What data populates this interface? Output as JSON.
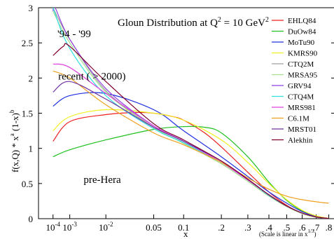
{
  "chart_data": {
    "type": "line",
    "title": {
      "main": "Gloun Distribution at Q",
      "sup": "2",
      "eq": " = 10 GeV",
      "sup2": "2"
    },
    "xlabel": "x",
    "x_note": {
      "main": "(Scale is linear in x",
      "sup": "1/3",
      "close": ")"
    },
    "ylabel": {
      "a": "f(x,Q)",
      "b": " * x",
      "b_sup": "a",
      "c": " (1-x)",
      "c_sup": "b"
    },
    "x_scale": "linear in x^(1/3)",
    "xlim": [
      0,
      0.85
    ],
    "ylim": [
      0,
      3
    ],
    "grid": false,
    "legend_position": "top-right",
    "x_ticks": [
      {
        "value": 0.0001,
        "base": "10",
        "exp": "-4"
      },
      {
        "value": 0.001,
        "base": "10",
        "exp": "-3"
      },
      {
        "value": 0.01,
        "base": "10",
        "exp": "-2"
      },
      {
        "value": 0.05,
        "text": "0.05"
      },
      {
        "value": 0.1,
        "text": "0.1"
      },
      {
        "value": 0.2,
        "text": ".2"
      },
      {
        "value": 0.3,
        "text": ".3"
      },
      {
        "value": 0.4,
        "text": ".4"
      },
      {
        "value": 0.5,
        "text": ".5"
      },
      {
        "value": 0.6,
        "text": ".6"
      },
      {
        "value": 0.7,
        "text": ".7"
      },
      {
        "value": 0.8,
        "text": ".8"
      }
    ],
    "y_ticks": [
      {
        "value": 0,
        "text": "0"
      },
      {
        "value": 0.5,
        "text": "0.5"
      },
      {
        "value": 1,
        "text": "1"
      },
      {
        "value": 1.5,
        "text": "1.5"
      },
      {
        "value": 2,
        "text": "2"
      },
      {
        "value": 2.5,
        "text": "2.5"
      },
      {
        "value": 3,
        "text": "3"
      }
    ],
    "annotations": [
      {
        "text": "'94 - '99",
        "x": 0.00022,
        "y": 2.63
      },
      {
        "text": "recent ( > 2000)",
        "x": 0.00025,
        "y": 2.03
      },
      {
        "text": "pre-Hera",
        "x": 0.003,
        "y": 0.56
      }
    ],
    "series": [
      {
        "name": "EHLQ84",
        "color": "#ee2020",
        "x": [
          0.0001,
          0.001,
          0.01,
          0.03,
          0.05,
          0.08,
          0.1,
          0.15,
          0.2,
          0.3,
          0.4,
          0.5,
          0.6,
          0.7,
          0.8
        ],
        "y": [
          1.1,
          1.38,
          1.48,
          1.51,
          1.5,
          1.45,
          1.4,
          1.22,
          1.02,
          0.66,
          0.38,
          0.19,
          0.08,
          0.03,
          0.005
        ]
      },
      {
        "name": "DuOw84",
        "color": "#20c020",
        "x": [
          0.0001,
          0.001,
          0.01,
          0.05,
          0.1,
          0.15,
          0.2,
          0.3,
          0.4,
          0.5,
          0.6,
          0.7,
          0.8
        ],
        "y": [
          0.88,
          0.98,
          1.12,
          1.27,
          1.31,
          1.3,
          1.22,
          0.88,
          0.52,
          0.26,
          0.11,
          0.03,
          0.005
        ]
      },
      {
        "name": "MoTu90",
        "color": "#2030e0",
        "x": [
          0.0001,
          0.001,
          0.01,
          0.05,
          0.1,
          0.2,
          0.3,
          0.4,
          0.5,
          0.6,
          0.7,
          0.8
        ],
        "y": [
          1.6,
          1.75,
          1.78,
          1.55,
          1.25,
          0.88,
          0.6,
          0.38,
          0.22,
          0.1,
          0.03,
          0.003
        ]
      },
      {
        "name": "KMRS90",
        "color": "#f0f020",
        "x": [
          0.0001,
          0.001,
          0.01,
          0.05,
          0.1,
          0.2,
          0.3,
          0.4,
          0.5,
          0.6,
          0.7,
          0.8
        ],
        "y": [
          1.25,
          1.45,
          1.55,
          1.5,
          1.4,
          1.12,
          0.8,
          0.5,
          0.27,
          0.12,
          0.04,
          0.005
        ]
      },
      {
        "name": "CTQ2M",
        "color": "#a0a0a0",
        "x": [
          0.0001,
          0.001,
          0.01,
          0.05,
          0.1,
          0.2,
          0.3,
          0.4,
          0.5,
          0.6,
          0.7,
          0.8
        ],
        "y": [
          3.0,
          2.55,
          1.82,
          1.3,
          1.08,
          0.8,
          0.55,
          0.33,
          0.18,
          0.08,
          0.025,
          0.003
        ]
      },
      {
        "name": "MRSA95",
        "color": "#a6e090",
        "x": [
          0.0001,
          0.001,
          0.01,
          0.05,
          0.1,
          0.2,
          0.3,
          0.4,
          0.5,
          0.6,
          0.7,
          0.8
        ],
        "y": [
          2.95,
          2.5,
          1.8,
          1.3,
          1.07,
          0.78,
          0.53,
          0.32,
          0.17,
          0.07,
          0.02,
          0.002
        ]
      },
      {
        "name": "GRV94",
        "color": "#9040e0",
        "x": [
          0.0001,
          0.00015,
          0.001,
          0.01,
          0.05,
          0.1,
          0.2,
          0.3,
          0.4,
          0.5,
          0.6,
          0.7,
          0.8
        ],
        "y": [
          2.95,
          3.0,
          2.55,
          1.85,
          1.32,
          1.1,
          0.8,
          0.55,
          0.33,
          0.18,
          0.08,
          0.025,
          0.003
        ]
      },
      {
        "name": "CTQ4M",
        "color": "#30e0e0",
        "x": [
          0.0001,
          0.001,
          0.01,
          0.05,
          0.1,
          0.2,
          0.3,
          0.4,
          0.5,
          0.6,
          0.7,
          0.8
        ],
        "y": [
          3.0,
          2.42,
          1.75,
          1.28,
          1.08,
          0.8,
          0.55,
          0.33,
          0.18,
          0.08,
          0.025,
          0.003
        ]
      },
      {
        "name": "MRS981",
        "color": "#e040e0",
        "x": [
          0.0001,
          0.001,
          0.01,
          0.05,
          0.1,
          0.2,
          0.3,
          0.4,
          0.5,
          0.6,
          0.7,
          0.8
        ],
        "y": [
          2.2,
          2.15,
          1.78,
          1.32,
          1.1,
          0.8,
          0.55,
          0.34,
          0.18,
          0.08,
          0.025,
          0.003
        ]
      },
      {
        "name": "C6.1M",
        "color": "#f0a020",
        "x": [
          0.0001,
          0.001,
          0.01,
          0.05,
          0.1,
          0.2,
          0.3,
          0.4,
          0.5,
          0.6,
          0.7,
          0.8
        ],
        "y": [
          2.1,
          2.0,
          1.62,
          1.22,
          1.05,
          0.8,
          0.58,
          0.42,
          0.32,
          0.27,
          0.24,
          0.22
        ]
      },
      {
        "name": "MRST01",
        "color": "#7030a0",
        "x": [
          0.0001,
          0.001,
          0.01,
          0.05,
          0.1,
          0.2,
          0.3,
          0.4,
          0.5,
          0.6,
          0.7,
          0.8
        ],
        "y": [
          1.8,
          1.95,
          1.7,
          1.3,
          1.1,
          0.82,
          0.56,
          0.34,
          0.18,
          0.08,
          0.025,
          0.003
        ]
      },
      {
        "name": "Alekhin",
        "color": "#800030",
        "x": [
          0.0001,
          0.0005,
          0.001,
          0.01,
          0.05,
          0.1,
          0.2,
          0.3,
          0.4,
          0.5,
          0.6,
          0.7,
          0.8
        ],
        "y": [
          2.32,
          2.45,
          2.45,
          1.95,
          1.35,
          1.12,
          0.82,
          0.56,
          0.34,
          0.18,
          0.08,
          0.025,
          0.003
        ]
      }
    ]
  }
}
